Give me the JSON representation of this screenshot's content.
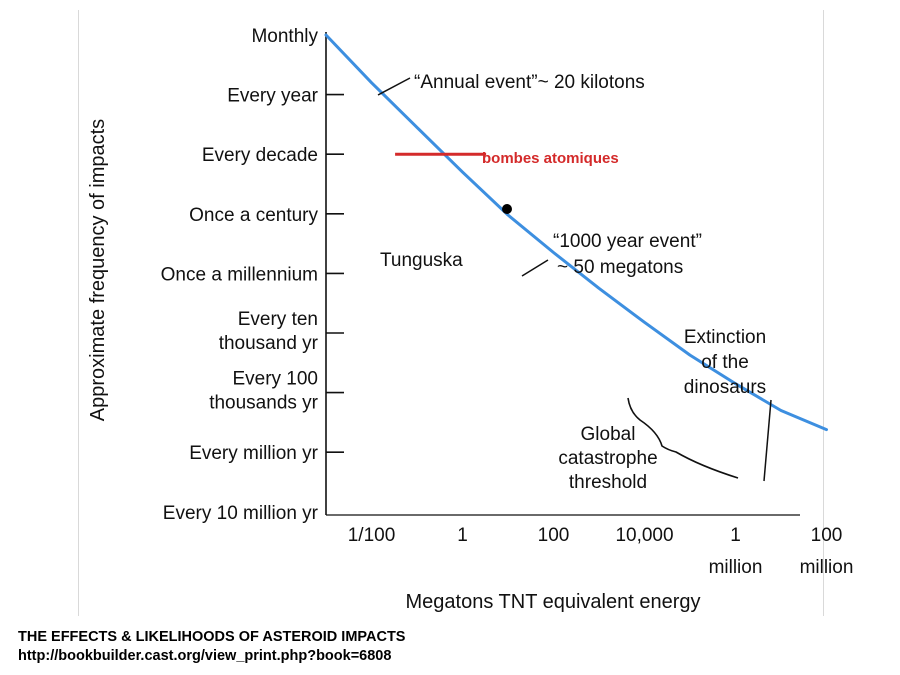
{
  "chart_data": {
    "type": "line",
    "title": "",
    "xlabel": "Megatons TNT equivalent energy",
    "ylabel": "Approximate frequency of impacts",
    "x_scale": "log",
    "x_ticks": [
      {
        "value": 0.01,
        "lines": [
          "1/100"
        ]
      },
      {
        "value": 1,
        "lines": [
          "1"
        ]
      },
      {
        "value": 100,
        "lines": [
          "100"
        ]
      },
      {
        "value": 10000,
        "lines": [
          "10,000"
        ]
      },
      {
        "value": 1000000,
        "lines": [
          "1",
          "million"
        ]
      },
      {
        "value": 100000000,
        "lines": [
          "100",
          "million"
        ]
      }
    ],
    "y_ticks": [
      {
        "lines": [
          "Monthly"
        ]
      },
      {
        "lines": [
          "Every year"
        ]
      },
      {
        "lines": [
          "Every decade"
        ]
      },
      {
        "lines": [
          "Once a century"
        ]
      },
      {
        "lines": [
          "Once a millennium"
        ]
      },
      {
        "lines": [
          "Every ten",
          "thousand yr"
        ]
      },
      {
        "lines": [
          "Every 100",
          "thousands yr"
        ]
      },
      {
        "lines": [
          "Every million yr"
        ]
      },
      {
        "lines": [
          "Every 10 million yr"
        ]
      }
    ],
    "series": [
      {
        "color": "#3d8fe0",
        "points": [
          [
            0.001,
            0
          ],
          [
            0.01,
            0.8
          ],
          [
            0.1,
            1.55
          ],
          [
            1,
            2.3
          ],
          [
            10,
            3.02
          ],
          [
            100,
            3.65
          ],
          [
            1000,
            4.25
          ],
          [
            10000,
            4.82
          ],
          [
            100000,
            5.37
          ],
          [
            1000000,
            5.85
          ],
          [
            10000000,
            6.3
          ],
          [
            100000000,
            6.62
          ]
        ]
      }
    ],
    "annotations": {
      "annual": "“Annual event”~ 20 kilotons",
      "millennium_line1": "“1000 year event”",
      "millennium_line2": "~ 50 megatons",
      "tunguska": "Tunguska",
      "extinction": [
        "Extinction",
        "of the",
        "dinosaurs"
      ],
      "global": [
        "Global",
        "catastrophe",
        "threshold"
      ],
      "bombes": "bombes atomiques"
    },
    "tunguska_point": {
      "x": 10,
      "y": 3.02
    },
    "bombes_line": {
      "x_from": 0.033,
      "x_to": 3.3,
      "y": 2
    },
    "accent_red": "#d42a2a"
  },
  "caption": {
    "line1": "THE EFFECTS & LIKELIHOODS  OF ASTEROID IMPACTS",
    "line2": "http://bookbuilder.cast.org/view_print.php?book=6808"
  }
}
